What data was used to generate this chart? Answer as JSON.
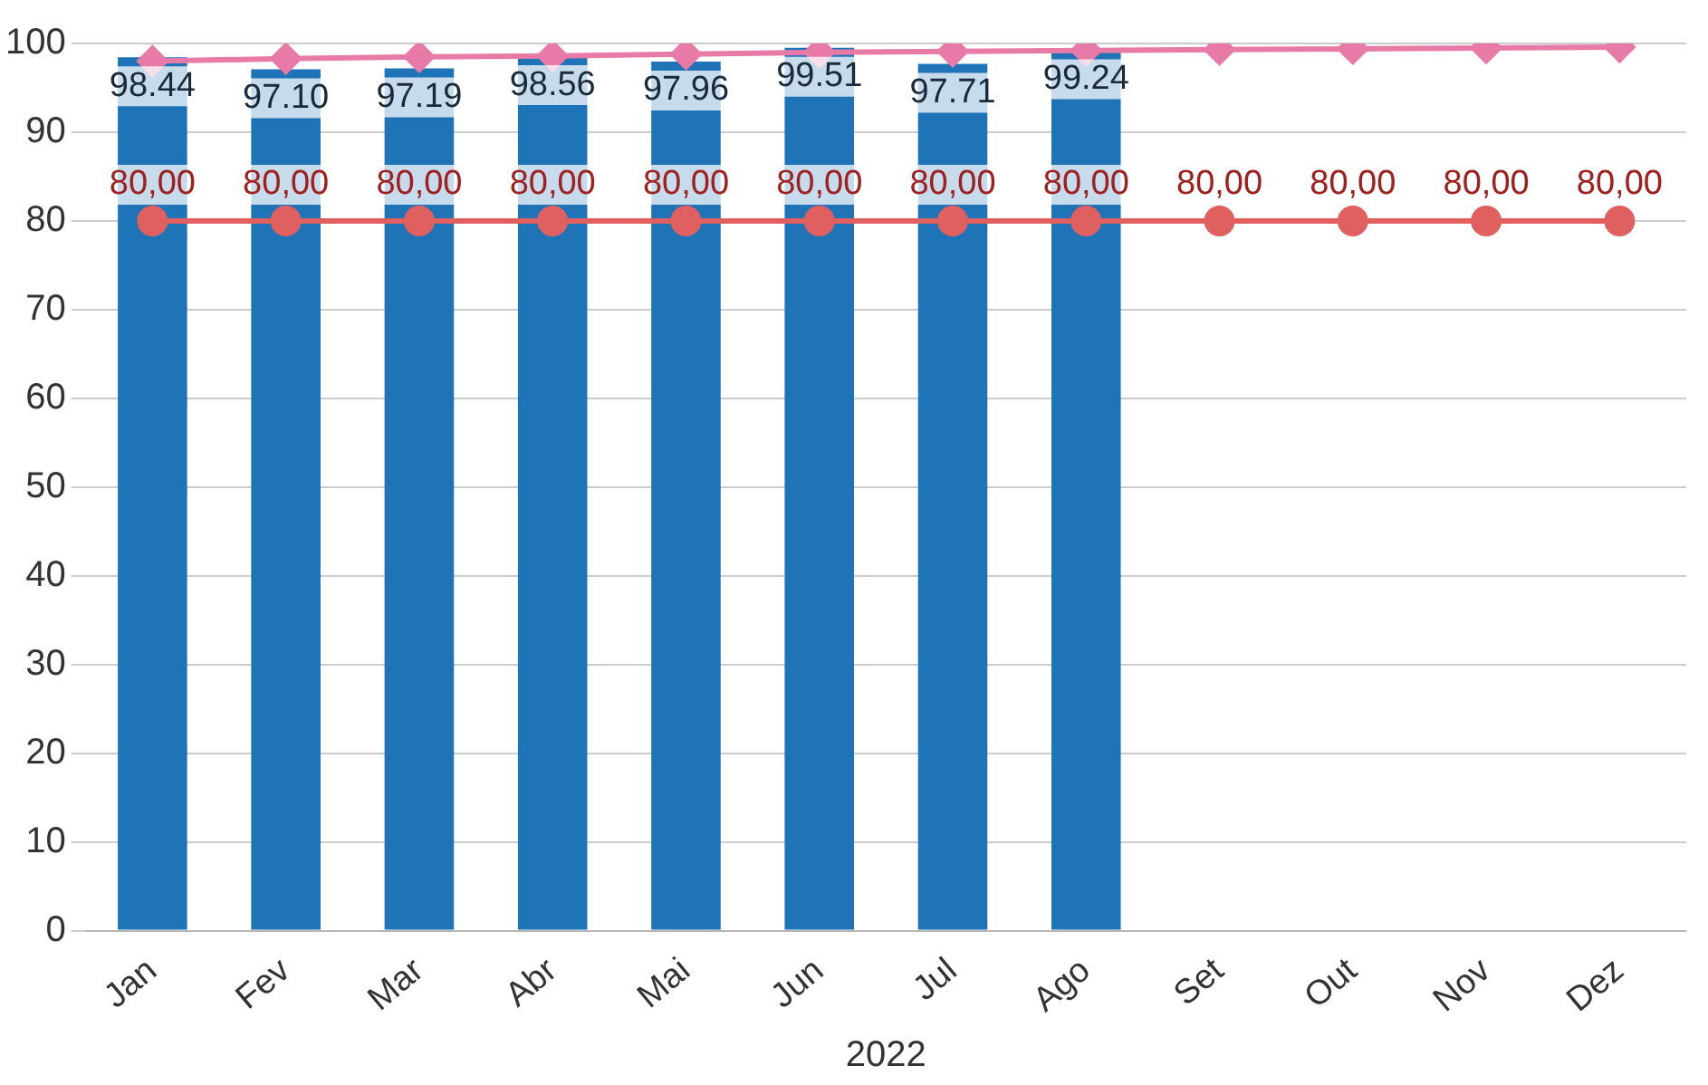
{
  "chart_data": {
    "type": "bar",
    "xlabel": "2022",
    "categories": [
      "Jan",
      "Fev",
      "Mar",
      "Abr",
      "Mai",
      "Jun",
      "Jul",
      "Ago",
      "Set",
      "Out",
      "Nov",
      "Dez"
    ],
    "series": [
      {
        "color": "#1f73b7",
        "values": [
          98.44,
          97.1,
          97.19,
          98.56,
          97.96,
          99.51,
          97.71,
          99.24,
          null,
          null,
          null,
          null
        ],
        "value_labels": [
          "98.44",
          "97.10",
          "97.19",
          "98.56",
          "97.96",
          "99.51",
          "97.71",
          "99.24",
          null,
          null,
          null,
          null
        ]
      },
      {
        "type": "line",
        "color": "#e06060",
        "marker": "circle",
        "values": [
          80,
          80,
          80,
          80,
          80,
          80,
          80,
          80,
          80,
          80,
          80,
          80
        ],
        "value_labels": [
          "80,00",
          "80,00",
          "80,00",
          "80,00",
          "80,00",
          "80,00",
          "80,00",
          "80,00",
          "80,00",
          "80,00",
          "80,00",
          "80,00"
        ]
      },
      {
        "type": "line",
        "color": "#e87aa8",
        "marker": "diamond",
        "values": [
          98.0,
          98.3,
          98.5,
          98.6,
          98.8,
          99.0,
          99.1,
          99.2,
          99.3,
          99.4,
          99.5,
          99.6
        ]
      }
    ],
    "ylim": [
      0,
      100
    ],
    "yticks": [
      0,
      10,
      20,
      30,
      40,
      50,
      60,
      70,
      80,
      90,
      100
    ],
    "grid": "y",
    "legend": false
  }
}
